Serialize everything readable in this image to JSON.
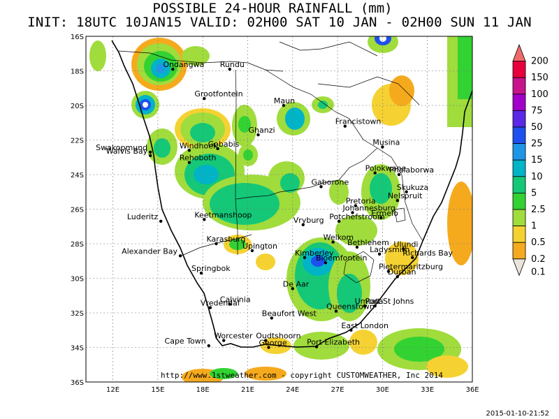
{
  "header": {
    "title": "POSSIBLE 24-HOUR  RAINFALL (mm)",
    "subtitle": "INIT: 18UTC 10JAN15  VALID: 02H00 SAT 10 JAN - 02H00 SUN 11 JAN"
  },
  "timestamp": "2015-01-10-21:52",
  "credit": "http://www.1stweather.com - copyright CUSTOMWEATHER, Inc 2014",
  "axes": {
    "lon_ticks": [
      "12E",
      "15E",
      "18E",
      "21E",
      "24E",
      "27E",
      "30E",
      "33E",
      "36E"
    ],
    "lat_ticks": [
      "16S",
      "18S",
      "20S",
      "22S",
      "24S",
      "26S",
      "28S",
      "30S",
      "32S",
      "34S",
      "36S"
    ]
  },
  "legend": {
    "levels": [
      {
        "label": "200",
        "color": "#f06a6a"
      },
      {
        "label": "150",
        "color": "#e8003c"
      },
      {
        "label": "100",
        "color": "#c8148c"
      },
      {
        "label": "75",
        "color": "#a000c8"
      },
      {
        "label": "50",
        "color": "#5a28e6"
      },
      {
        "label": "25",
        "color": "#1e50f0"
      },
      {
        "label": "15",
        "color": "#1e96e6"
      },
      {
        "label": "10",
        "color": "#00b4c8"
      },
      {
        "label": "5",
        "color": "#14c878"
      },
      {
        "label": "2.5",
        "color": "#32d232"
      },
      {
        "label": "1",
        "color": "#a0dc3c"
      },
      {
        "label": "0.5",
        "color": "#f5d232"
      },
      {
        "label": "0.2",
        "color": "#f5aa1e"
      },
      {
        "label": "0.1",
        "color": "#eae4dc"
      }
    ]
  },
  "cities": [
    {
      "name": "Ondangwa",
      "lon": 16.0,
      "lat": 17.9
    },
    {
      "name": "Rundu",
      "lon": 19.8,
      "lat": 17.9
    },
    {
      "name": "Grootfontein",
      "lon": 18.1,
      "lat": 19.6
    },
    {
      "name": "Maun",
      "lon": 23.4,
      "lat": 20.0
    },
    {
      "name": "Francistown",
      "lon": 27.5,
      "lat": 21.2
    },
    {
      "name": "Ghanzi",
      "lon": 21.7,
      "lat": 21.7
    },
    {
      "name": "Swakopmund",
      "lon": 14.5,
      "lat": 22.7
    },
    {
      "name": "Walvis Bay",
      "lon": 14.5,
      "lat": 22.9
    },
    {
      "name": "Windhoek",
      "lon": 17.1,
      "lat": 22.6
    },
    {
      "name": "Gobabis",
      "lon": 19.0,
      "lat": 22.5
    },
    {
      "name": "Rehoboth",
      "lon": 17.1,
      "lat": 23.3
    },
    {
      "name": "Musina",
      "lon": 30.0,
      "lat": 22.4
    },
    {
      "name": "Polokwane",
      "lon": 29.5,
      "lat": 23.9
    },
    {
      "name": "Phalaborwa",
      "lon": 31.1,
      "lat": 24.0
    },
    {
      "name": "Gaborone",
      "lon": 25.9,
      "lat": 24.7
    },
    {
      "name": "Skukuza",
      "lon": 31.6,
      "lat": 25.0
    },
    {
      "name": "Nelspruit",
      "lon": 31.0,
      "lat": 25.5
    },
    {
      "name": "Pretoria",
      "lon": 28.2,
      "lat": 25.8
    },
    {
      "name": "Johannesburg",
      "lon": 28.0,
      "lat": 26.2
    },
    {
      "name": "Luderitz",
      "lon": 15.2,
      "lat": 26.7
    },
    {
      "name": "Keetmanshoop",
      "lon": 18.1,
      "lat": 26.6
    },
    {
      "name": "Ermelo",
      "lon": 29.9,
      "lat": 26.5
    },
    {
      "name": "Vryburg",
      "lon": 24.7,
      "lat": 26.9
    },
    {
      "name": "Potchefstroom",
      "lon": 27.1,
      "lat": 26.7
    },
    {
      "name": "Karasburg",
      "lon": 18.9,
      "lat": 28.0
    },
    {
      "name": "Welkom",
      "lon": 26.7,
      "lat": 27.9
    },
    {
      "name": "Bethlehem",
      "lon": 28.3,
      "lat": 28.2
    },
    {
      "name": "Ulundi",
      "lon": 31.4,
      "lat": 28.3
    },
    {
      "name": "Upington",
      "lon": 21.3,
      "lat": 28.4
    },
    {
      "name": "Ladysmith",
      "lon": 29.8,
      "lat": 28.6
    },
    {
      "name": "Alexander Bay",
      "lon": 16.5,
      "lat": 28.7
    },
    {
      "name": "Kimberley",
      "lon": 24.8,
      "lat": 28.8
    },
    {
      "name": "Richards Bay",
      "lon": 32.0,
      "lat": 28.8
    },
    {
      "name": "Bloemfontein",
      "lon": 26.2,
      "lat": 29.1
    },
    {
      "name": "Springbok",
      "lon": 17.9,
      "lat": 29.7
    },
    {
      "name": "Pietermaritzburg",
      "lon": 30.4,
      "lat": 29.6
    },
    {
      "name": "Durban",
      "lon": 31.0,
      "lat": 29.9
    },
    {
      "name": "De Aar",
      "lon": 24.0,
      "lat": 30.6
    },
    {
      "name": "Calvinia",
      "lon": 19.8,
      "lat": 31.5
    },
    {
      "name": "Umtata",
      "lon": 28.8,
      "lat": 31.6
    },
    {
      "name": "Port St Johns",
      "lon": 29.5,
      "lat": 31.6
    },
    {
      "name": "Vredendal",
      "lon": 18.5,
      "lat": 31.7
    },
    {
      "name": "Queenstown",
      "lon": 26.9,
      "lat": 31.9
    },
    {
      "name": "Beaufort West",
      "lon": 22.6,
      "lat": 32.3
    },
    {
      "name": "East London",
      "lon": 27.9,
      "lat": 33.0
    },
    {
      "name": "Worcester",
      "lon": 19.4,
      "lat": 33.6
    },
    {
      "name": "Oudtshoorn",
      "lon": 22.2,
      "lat": 33.6
    },
    {
      "name": "Cape Town",
      "lon": 18.4,
      "lat": 33.9
    },
    {
      "name": "Port Elizabeth",
      "lon": 25.6,
      "lat": 33.96
    },
    {
      "name": "George",
      "lon": 22.4,
      "lat": 34.0
    }
  ]
}
